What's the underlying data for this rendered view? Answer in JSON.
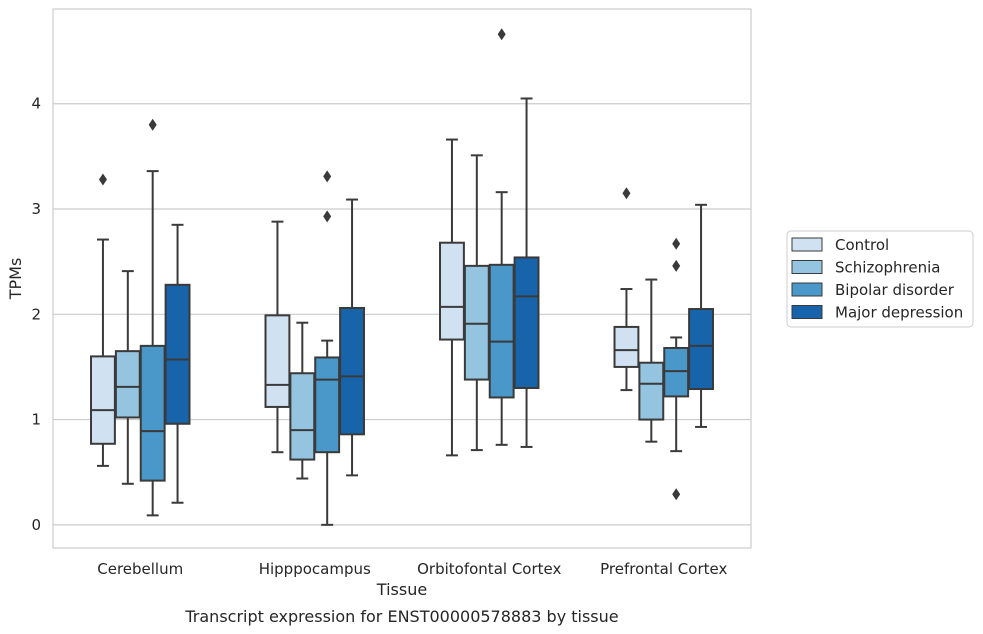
{
  "caption": "Transcript expression for ENST00000578883 by tissue",
  "chart_data": {
    "type": "box",
    "xlabel": "Tissue",
    "ylabel": "TPMs",
    "ylim": [
      -0.22,
      4.9
    ],
    "yticks": [
      0,
      1,
      2,
      3,
      4
    ],
    "grid": true,
    "legend_position": "right",
    "categories": [
      "Cerebellum",
      "Hipppocampus",
      "Orbitofontal Cortex",
      "Prefrontal Cortex"
    ],
    "series": [
      {
        "name": "Control",
        "color": "#d0e1f2",
        "boxes": [
          {
            "whislo": 0.56,
            "q1": 0.77,
            "med": 1.09,
            "q3": 1.6,
            "whishi": 2.71,
            "fliers": [
              3.28
            ]
          },
          {
            "whislo": 0.69,
            "q1": 1.12,
            "med": 1.33,
            "q3": 1.99,
            "whishi": 2.88,
            "fliers": []
          },
          {
            "whislo": 0.66,
            "q1": 1.76,
            "med": 2.07,
            "q3": 2.68,
            "whishi": 3.66,
            "fliers": []
          },
          {
            "whislo": 1.28,
            "q1": 1.5,
            "med": 1.66,
            "q3": 1.88,
            "whishi": 2.24,
            "fliers": [
              3.15
            ]
          }
        ]
      },
      {
        "name": "Schizophrenia",
        "color": "#94c4df",
        "boxes": [
          {
            "whislo": 0.39,
            "q1": 1.02,
            "med": 1.31,
            "q3": 1.65,
            "whishi": 2.41,
            "fliers": []
          },
          {
            "whislo": 0.44,
            "q1": 0.62,
            "med": 0.9,
            "q3": 1.44,
            "whishi": 1.92,
            "fliers": []
          },
          {
            "whislo": 0.71,
            "q1": 1.38,
            "med": 1.91,
            "q3": 2.46,
            "whishi": 3.51,
            "fliers": []
          },
          {
            "whislo": 0.79,
            "q1": 1.0,
            "med": 1.34,
            "q3": 1.54,
            "whishi": 2.33,
            "fliers": []
          }
        ]
      },
      {
        "name": "Bipolar disorder",
        "color": "#4a98c9",
        "boxes": [
          {
            "whislo": 0.09,
            "q1": 0.42,
            "med": 0.89,
            "q3": 1.7,
            "whishi": 3.36,
            "fliers": [
              3.8
            ]
          },
          {
            "whislo": 0.0,
            "q1": 0.69,
            "med": 1.38,
            "q3": 1.59,
            "whishi": 1.75,
            "fliers": [
              2.93,
              3.31
            ]
          },
          {
            "whislo": 0.76,
            "q1": 1.21,
            "med": 1.74,
            "q3": 2.47,
            "whishi": 3.16,
            "fliers": [
              4.66
            ]
          },
          {
            "whislo": 0.7,
            "q1": 1.22,
            "med": 1.46,
            "q3": 1.68,
            "whishi": 1.78,
            "fliers": [
              0.29,
              2.46,
              2.67
            ]
          }
        ]
      },
      {
        "name": "Major depression",
        "color": "#1764ab",
        "boxes": [
          {
            "whislo": 0.21,
            "q1": 0.96,
            "med": 1.57,
            "q3": 2.28,
            "whishi": 2.85,
            "fliers": []
          },
          {
            "whislo": 0.47,
            "q1": 0.86,
            "med": 1.41,
            "q3": 2.06,
            "whishi": 3.09,
            "fliers": []
          },
          {
            "whislo": 0.74,
            "q1": 1.3,
            "med": 2.17,
            "q3": 2.54,
            "whishi": 4.05,
            "fliers": []
          },
          {
            "whislo": 0.93,
            "q1": 1.29,
            "med": 1.7,
            "q3": 2.05,
            "whishi": 3.04,
            "fliers": []
          }
        ]
      }
    ]
  }
}
